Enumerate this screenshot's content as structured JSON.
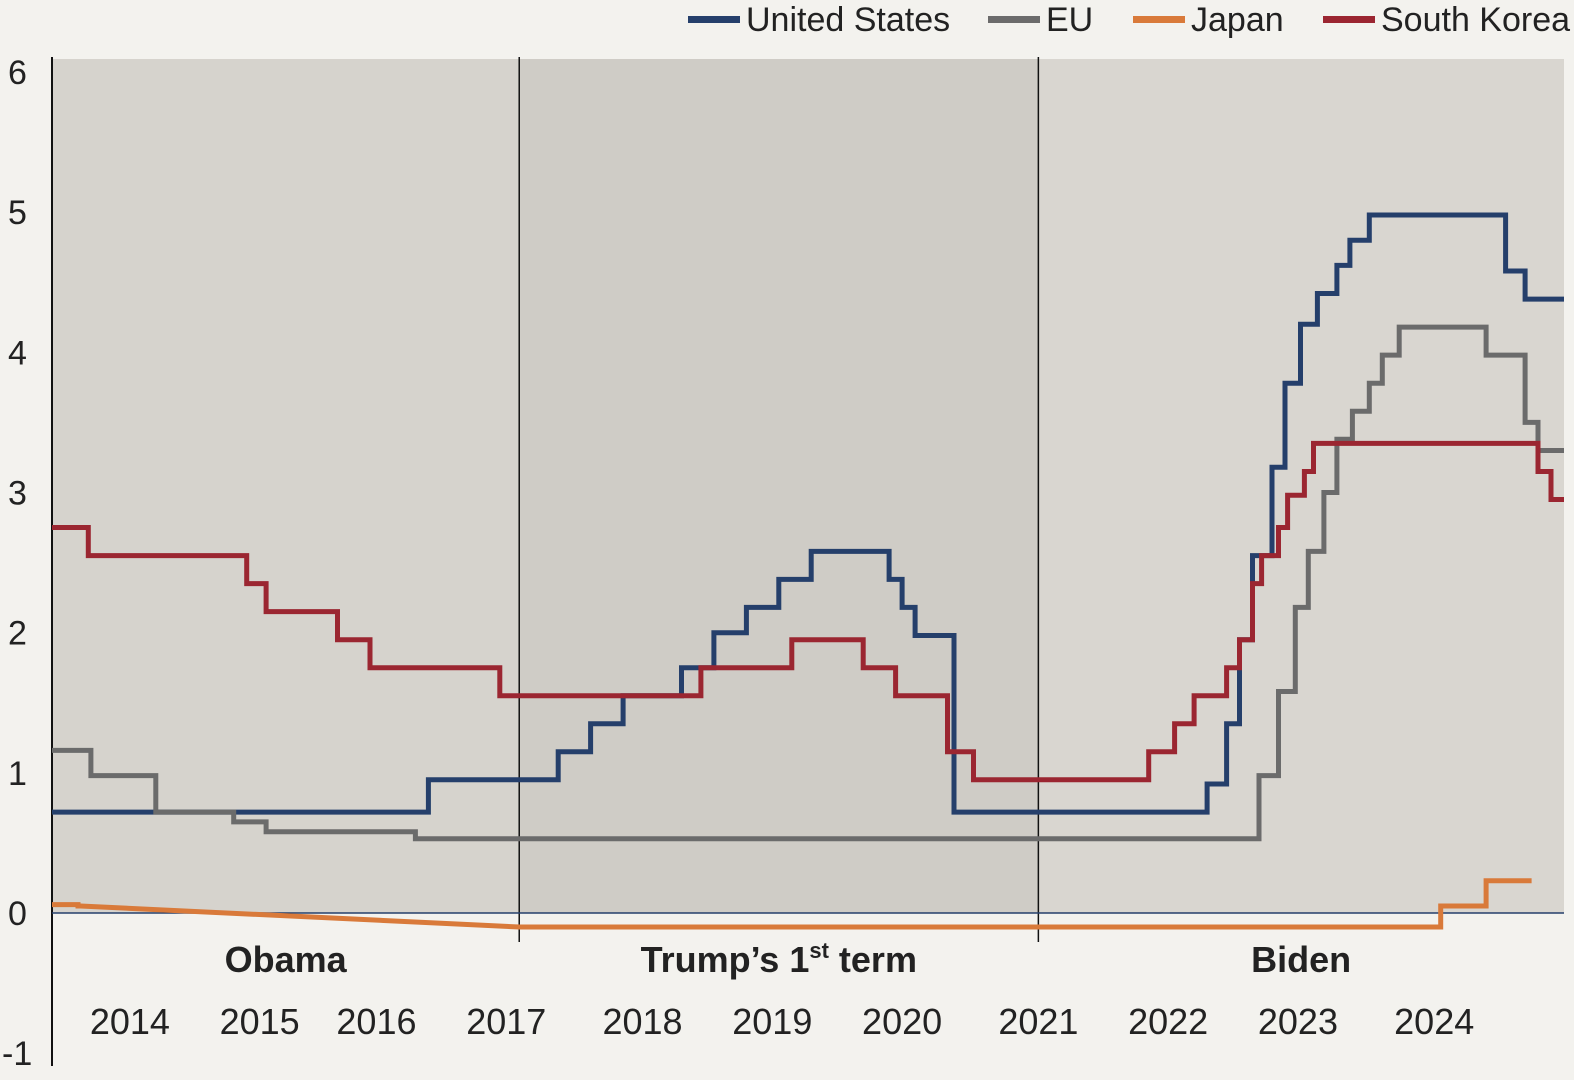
{
  "chart_data": {
    "type": "line",
    "step": true,
    "xlim": [
      2013.4,
      2025.05
    ],
    "ylim": [
      -1,
      6
    ],
    "y_ticks": [
      "6",
      "5",
      "4",
      "3",
      "2",
      "1",
      "0",
      "-1"
    ],
    "y_tick_values": [
      6,
      5,
      4,
      3,
      2,
      1,
      0,
      -1
    ],
    "x_tick_labels": [
      {
        "label": "2014",
        "x": 2014.0
      },
      {
        "label": "2015",
        "x": 2015.0
      },
      {
        "label": "2016",
        "x": 2015.9
      },
      {
        "label": "2017",
        "x": 2016.9
      },
      {
        "label": "2018",
        "x": 2017.95
      },
      {
        "label": "2019",
        "x": 2018.95
      },
      {
        "label": "2020",
        "x": 2019.95
      },
      {
        "label": "2021",
        "x": 2021.0
      },
      {
        "label": "2022",
        "x": 2022.0
      },
      {
        "label": "2023",
        "x": 2023.0
      },
      {
        "label": "2024",
        "x": 2024.05
      }
    ],
    "eras": [
      {
        "label": "Obama",
        "start": 2013.4,
        "end": 2017.0,
        "shade": "#d6d3cd"
      },
      {
        "label": "Trump’s 1",
        "sup": "st",
        "suffix": " term",
        "start": 2017.0,
        "end": 2021.0,
        "shade": "#cfccc6"
      },
      {
        "label": "Biden",
        "start": 2021.0,
        "end": 2025.05,
        "shade": "#d9d6d0"
      }
    ],
    "series": [
      {
        "name": "United States",
        "color": "#253f6b",
        "points": [
          [
            2013.4,
            0.72
          ],
          [
            2016.3,
            0.72
          ],
          [
            2016.3,
            0.95
          ],
          [
            2017.3,
            0.95
          ],
          [
            2017.3,
            1.15
          ],
          [
            2017.55,
            1.15
          ],
          [
            2017.55,
            1.35
          ],
          [
            2017.8,
            1.35
          ],
          [
            2017.8,
            1.55
          ],
          [
            2018.25,
            1.55
          ],
          [
            2018.25,
            1.75
          ],
          [
            2018.5,
            1.75
          ],
          [
            2018.5,
            2.0
          ],
          [
            2018.75,
            2.0
          ],
          [
            2018.75,
            2.18
          ],
          [
            2019.0,
            2.18
          ],
          [
            2019.0,
            2.38
          ],
          [
            2019.25,
            2.38
          ],
          [
            2019.25,
            2.58
          ],
          [
            2019.85,
            2.58
          ],
          [
            2019.85,
            2.38
          ],
          [
            2019.95,
            2.38
          ],
          [
            2019.95,
            2.18
          ],
          [
            2020.05,
            2.18
          ],
          [
            2020.05,
            1.98
          ],
          [
            2020.35,
            1.98
          ],
          [
            2020.35,
            0.72
          ],
          [
            2022.3,
            0.72
          ],
          [
            2022.3,
            0.92
          ],
          [
            2022.45,
            0.92
          ],
          [
            2022.45,
            1.35
          ],
          [
            2022.55,
            1.35
          ],
          [
            2022.55,
            1.95
          ],
          [
            2022.65,
            1.95
          ],
          [
            2022.65,
            2.55
          ],
          [
            2022.8,
            2.55
          ],
          [
            2022.8,
            3.18
          ],
          [
            2022.9,
            3.18
          ],
          [
            2022.9,
            3.78
          ],
          [
            2023.02,
            3.78
          ],
          [
            2023.02,
            4.2
          ],
          [
            2023.15,
            4.2
          ],
          [
            2023.15,
            4.42
          ],
          [
            2023.3,
            4.42
          ],
          [
            2023.3,
            4.62
          ],
          [
            2023.4,
            4.62
          ],
          [
            2023.4,
            4.8
          ],
          [
            2023.55,
            4.8
          ],
          [
            2023.55,
            4.98
          ],
          [
            2024.6,
            4.98
          ],
          [
            2024.6,
            4.58
          ],
          [
            2024.75,
            4.58
          ],
          [
            2024.75,
            4.38
          ],
          [
            2025.05,
            4.38
          ]
        ]
      },
      {
        "name": "EU",
        "color": "#6b6b6b",
        "points": [
          [
            2013.4,
            1.16
          ],
          [
            2013.7,
            1.16
          ],
          [
            2013.7,
            0.98
          ],
          [
            2014.2,
            0.98
          ],
          [
            2014.2,
            0.72
          ],
          [
            2014.8,
            0.72
          ],
          [
            2014.8,
            0.65
          ],
          [
            2015.05,
            0.65
          ],
          [
            2015.05,
            0.58
          ],
          [
            2016.2,
            0.58
          ],
          [
            2016.2,
            0.53
          ],
          [
            2022.7,
            0.53
          ],
          [
            2022.7,
            0.98
          ],
          [
            2022.85,
            0.98
          ],
          [
            2022.85,
            1.58
          ],
          [
            2022.98,
            1.58
          ],
          [
            2022.98,
            2.18
          ],
          [
            2023.08,
            2.18
          ],
          [
            2023.08,
            2.58
          ],
          [
            2023.2,
            2.58
          ],
          [
            2023.2,
            3.0
          ],
          [
            2023.3,
            3.0
          ],
          [
            2023.3,
            3.38
          ],
          [
            2023.42,
            3.38
          ],
          [
            2023.42,
            3.58
          ],
          [
            2023.55,
            3.58
          ],
          [
            2023.55,
            3.78
          ],
          [
            2023.65,
            3.78
          ],
          [
            2023.65,
            3.98
          ],
          [
            2023.78,
            3.98
          ],
          [
            2023.78,
            4.18
          ],
          [
            2024.45,
            4.18
          ],
          [
            2024.45,
            3.98
          ],
          [
            2024.75,
            3.98
          ],
          [
            2024.75,
            3.5
          ],
          [
            2024.85,
            3.5
          ],
          [
            2024.85,
            3.3
          ],
          [
            2025.05,
            3.3
          ]
        ]
      },
      {
        "name": "Japan",
        "color": "#d97a3a",
        "points": [
          [
            2013.4,
            0.06
          ],
          [
            2013.6,
            0.06
          ],
          [
            2013.6,
            0.05
          ],
          [
            2013.62,
            0.05
          ],
          [
            2017.0,
            -0.1
          ],
          [
            2024.1,
            -0.1
          ],
          [
            2024.1,
            0.05
          ],
          [
            2024.45,
            0.05
          ],
          [
            2024.45,
            0.23
          ],
          [
            2024.8,
            0.23
          ]
        ]
      },
      {
        "name": "South Korea",
        "color": "#9b2631",
        "points": [
          [
            2013.4,
            2.75
          ],
          [
            2013.68,
            2.75
          ],
          [
            2013.68,
            2.55
          ],
          [
            2014.9,
            2.55
          ],
          [
            2014.9,
            2.35
          ],
          [
            2015.05,
            2.35
          ],
          [
            2015.05,
            2.15
          ],
          [
            2015.6,
            2.15
          ],
          [
            2015.6,
            1.95
          ],
          [
            2015.85,
            1.95
          ],
          [
            2015.85,
            1.75
          ],
          [
            2016.85,
            1.75
          ],
          [
            2016.85,
            1.55
          ],
          [
            2018.4,
            1.55
          ],
          [
            2018.4,
            1.75
          ],
          [
            2019.1,
            1.75
          ],
          [
            2019.1,
            1.95
          ],
          [
            2019.65,
            1.95
          ],
          [
            2019.65,
            1.75
          ],
          [
            2019.9,
            1.75
          ],
          [
            2019.9,
            1.55
          ],
          [
            2020.3,
            1.55
          ],
          [
            2020.3,
            1.15
          ],
          [
            2020.5,
            1.15
          ],
          [
            2020.5,
            0.95
          ],
          [
            2021.85,
            0.95
          ],
          [
            2021.85,
            1.15
          ],
          [
            2022.05,
            1.15
          ],
          [
            2022.05,
            1.35
          ],
          [
            2022.2,
            1.35
          ],
          [
            2022.2,
            1.55
          ],
          [
            2022.45,
            1.55
          ],
          [
            2022.45,
            1.75
          ],
          [
            2022.55,
            1.75
          ],
          [
            2022.55,
            1.95
          ],
          [
            2022.65,
            1.95
          ],
          [
            2022.65,
            2.35
          ],
          [
            2022.72,
            2.35
          ],
          [
            2022.72,
            2.55
          ],
          [
            2022.85,
            2.55
          ],
          [
            2022.85,
            2.75
          ],
          [
            2022.92,
            2.75
          ],
          [
            2022.92,
            2.98
          ],
          [
            2023.05,
            2.98
          ],
          [
            2023.05,
            3.15
          ],
          [
            2023.12,
            3.15
          ],
          [
            2023.12,
            3.35
          ],
          [
            2024.85,
            3.35
          ],
          [
            2024.85,
            3.15
          ],
          [
            2024.95,
            3.15
          ],
          [
            2024.95,
            2.95
          ],
          [
            2025.05,
            2.95
          ]
        ]
      }
    ]
  }
}
